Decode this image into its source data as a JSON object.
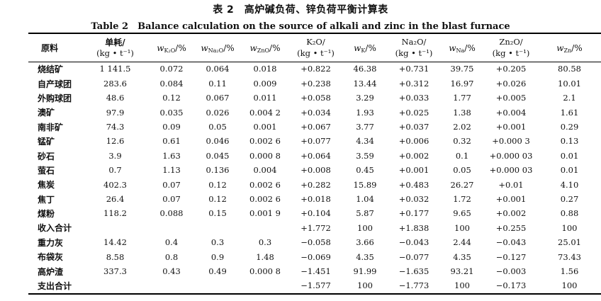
{
  "title_cn": "表 2　高炉碱负荷、锌负荷平衡计算表",
  "title_en": "Table 2　Balance calculation on the source of alkali and zinc in the blast furnace",
  "headers": {
    "material": "原料",
    "consumption": "单耗/",
    "unit": "(kg • t⁻¹)",
    "w_k2o": {
      "symbol": "w",
      "sub": "K₂O",
      "unit": "/%"
    },
    "w_na2o": {
      "symbol": "w",
      "sub": "Na₂O",
      "unit": "/%"
    },
    "w_zno": {
      "symbol": "w",
      "sub": "ZnO",
      "unit": "/%"
    },
    "k2o": "K₂O/",
    "w_k": {
      "symbol": "w",
      "sub": "K",
      "unit": "/%"
    },
    "na2o": "Na₂O/",
    "w_na": {
      "symbol": "w",
      "sub": "Na",
      "unit": "/%"
    },
    "zn2o": "Zn₂O/",
    "w_zn": {
      "symbol": "w",
      "sub": "Zn",
      "unit": "/%"
    }
  },
  "rows": [
    {
      "name": "烧结矿",
      "cells": [
        "1 141.5",
        "0.072",
        "0.064",
        "0.018",
        "+0.822",
        "46.38",
        "+0.731",
        "39.75",
        "+0.205",
        "80.58"
      ]
    },
    {
      "name": "自产球团",
      "cells": [
        "283.6",
        "0.084",
        "0.11",
        "0.009",
        "+0.238",
        "13.44",
        "+0.312",
        "16.97",
        "+0.026",
        "10.01"
      ]
    },
    {
      "name": "外购球团",
      "cells": [
        "48.6",
        "0.12",
        "0.067",
        "0.011",
        "+0.058",
        "3.29",
        "+0.033",
        "1.77",
        "+0.005",
        "2.1"
      ]
    },
    {
      "name": "澳矿",
      "cells": [
        "97.9",
        "0.035",
        "0.026",
        "0.004 2",
        "+0.034",
        "1.93",
        "+0.025",
        "1.38",
        "+0.004",
        "1.61"
      ]
    },
    {
      "name": "南非矿",
      "cells": [
        "74.3",
        "0.09",
        "0.05",
        "0.001",
        "+0.067",
        "3.77",
        "+0.037",
        "2.02",
        "+0.001",
        "0.29"
      ]
    },
    {
      "name": "锰矿",
      "cells": [
        "12.6",
        "0.61",
        "0.046",
        "0.002 6",
        "+0.077",
        "4.34",
        "+0.006",
        "0.32",
        "+0.000 3",
        "0.13"
      ]
    },
    {
      "name": "砂石",
      "cells": [
        "3.9",
        "1.63",
        "0.045",
        "0.000 8",
        "+0.064",
        "3.59",
        "+0.002",
        "0.1",
        "+0.000 03",
        "0.01"
      ]
    },
    {
      "name": "萤石",
      "cells": [
        "0.7",
        "1.13",
        "0.136",
        "0.004",
        "+0.008",
        "0.45",
        "+0.001",
        "0.05",
        "+0.000 03",
        "0.01"
      ]
    },
    {
      "name": "焦炭",
      "cells": [
        "402.3",
        "0.07",
        "0.12",
        "0.002 6",
        "+0.282",
        "15.89",
        "+0.483",
        "26.27",
        "+0.01",
        "4.10"
      ]
    },
    {
      "name": "焦丁",
      "cells": [
        "26.4",
        "0.07",
        "0.12",
        "0.002 6",
        "+0.018",
        "1.04",
        "+0.032",
        "1.72",
        "+0.001",
        "0.27"
      ]
    },
    {
      "name": "煤粉",
      "cells": [
        "118.2",
        "0.088",
        "0.15",
        "0.001 9",
        "+0.104",
        "5.87",
        "+0.177",
        "9.65",
        "+0.002",
        "0.88"
      ]
    },
    {
      "name": "收入合计",
      "cells": [
        "",
        "",
        "",
        "",
        "+1.772",
        "100",
        "+1.838",
        "100",
        "+0.255",
        "100"
      ]
    },
    {
      "name": "重力灰",
      "cells": [
        "14.42",
        "0.4",
        "0.3",
        "0.3",
        "−0.058",
        "3.66",
        "−0.043",
        "2.44",
        "−0.043",
        "25.01"
      ]
    },
    {
      "name": "布袋灰",
      "cells": [
        "8.58",
        "0.8",
        "0.9",
        "1.48",
        "−0.069",
        "4.35",
        "−0.077",
        "4.35",
        "−0.127",
        "73.43"
      ]
    },
    {
      "name": "高炉渣",
      "cells": [
        "337.3",
        "0.43",
        "0.49",
        "0.000 8",
        "−1.451",
        "91.99",
        "−1.635",
        "93.21",
        "−0.003",
        "1.56"
      ]
    },
    {
      "name": "支出合计",
      "cells": [
        "",
        "",
        "",
        "",
        "−1.577",
        "100",
        "−1.773",
        "100",
        "−0.173",
        "100"
      ]
    }
  ]
}
